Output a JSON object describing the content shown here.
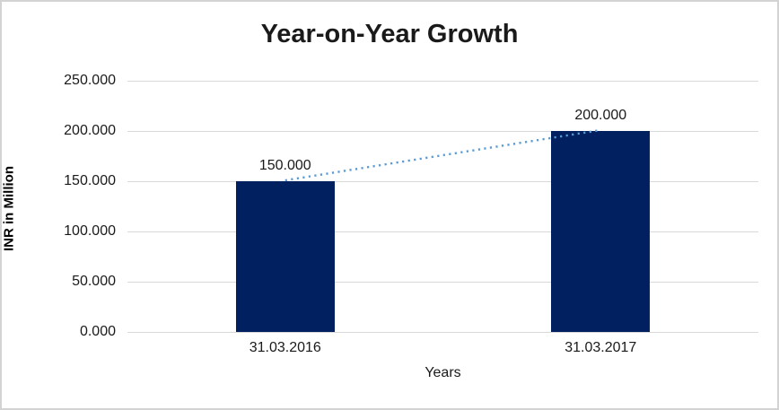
{
  "chart_data": {
    "type": "bar",
    "title": "Year-on-Year Growth",
    "xlabel": "Years",
    "ylabel": "INR in Million",
    "categories": [
      "31.03.2016",
      "31.03.2017"
    ],
    "values": [
      150,
      200
    ],
    "data_labels": [
      "150.000",
      "200.000"
    ],
    "yticks": [
      {
        "value": 0,
        "label": "0.000"
      },
      {
        "value": 50,
        "label": "50.000"
      },
      {
        "value": 100,
        "label": "100.000"
      },
      {
        "value": 150,
        "label": "150.000"
      },
      {
        "value": 200,
        "label": "200.000"
      },
      {
        "value": 250,
        "label": "250.000"
      }
    ],
    "ylim": [
      0,
      250
    ],
    "grid": true,
    "legend": "none",
    "trendline": {
      "style": "dotted",
      "from_value": 150,
      "to_value": 200
    },
    "layout": {
      "bar_width_frac": 0.157
    }
  },
  "colors": {
    "bar": "#002060",
    "trendline": "#5b9bd5",
    "gridline": "#d9d9d9",
    "frame_border": "#d3d3d3",
    "text": "#1a1a1a"
  }
}
